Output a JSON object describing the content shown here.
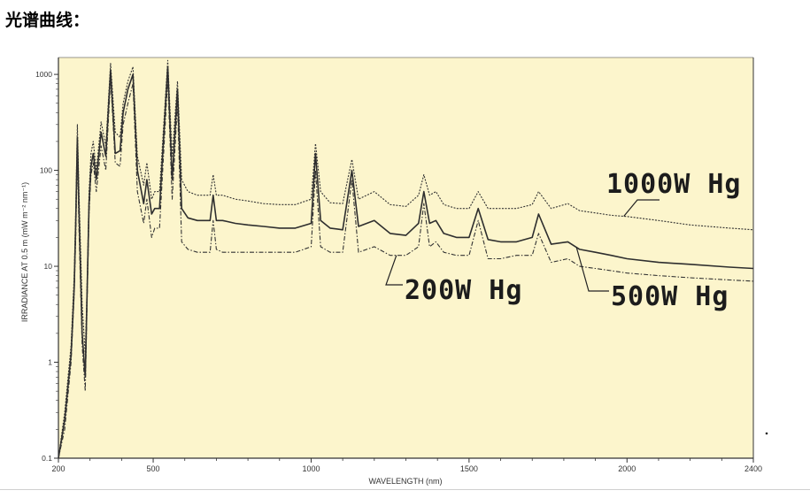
{
  "heading": "光谱曲线：",
  "chart_data": {
    "type": "line",
    "title": "",
    "xlabel": "WAVELENGTH (nm)",
    "ylabel": "IRRADIANCE AT 0.5 m (mW m⁻² nm⁻¹)",
    "xlim": [
      200,
      2400
    ],
    "ylim": [
      0.1,
      1500
    ],
    "yscale": "log",
    "xticks": [
      200,
      500,
      1000,
      1500,
      2000,
      2400
    ],
    "ytick_labels": [
      "1000",
      "100",
      "10",
      "1",
      "0.1"
    ],
    "ytick_values": [
      1000,
      100,
      10,
      1,
      0.1
    ],
    "grid": false,
    "background": "#fcf5cc",
    "series": [
      {
        "name": "1000W Hg",
        "style": "dotted",
        "x": [
          200,
          220,
          240,
          250,
          255,
          260,
          265,
          275,
          285,
          290,
          297,
          303,
          310,
          320,
          335,
          350,
          365,
          380,
          395,
          405,
          420,
          436,
          450,
          470,
          480,
          495,
          505,
          520,
          546,
          560,
          577,
          590,
          610,
          640,
          680,
          690,
          700,
          720,
          760,
          800,
          850,
          900,
          950,
          1000,
          1014,
          1030,
          1060,
          1100,
          1129,
          1150,
          1200,
          1250,
          1300,
          1340,
          1357,
          1375,
          1395,
          1420,
          1460,
          1500,
          1529,
          1560,
          1600,
          1650,
          1700,
          1720,
          1760,
          1813,
          1850,
          1900,
          1950,
          2000,
          2100,
          2200,
          2325,
          2400
        ],
        "y": [
          0.1,
          0.3,
          1.5,
          8,
          40,
          300,
          60,
          4,
          1.2,
          5,
          60,
          150,
          200,
          100,
          320,
          180,
          1300,
          250,
          220,
          500,
          850,
          1200,
          140,
          70,
          120,
          50,
          60,
          60,
          1400,
          140,
          850,
          80,
          60,
          55,
          55,
          90,
          55,
          55,
          50,
          48,
          45,
          44,
          44,
          50,
          190,
          60,
          46,
          45,
          130,
          50,
          60,
          44,
          42,
          55,
          90,
          55,
          60,
          44,
          40,
          40,
          60,
          40,
          40,
          40,
          44,
          60,
          40,
          45,
          38,
          36,
          34,
          33,
          30,
          27,
          25,
          24
        ]
      },
      {
        "name": "500W Hg",
        "style": "solid",
        "x": [
          200,
          220,
          240,
          250,
          255,
          260,
          265,
          275,
          285,
          290,
          297,
          303,
          310,
          320,
          335,
          350,
          365,
          380,
          395,
          405,
          420,
          436,
          450,
          470,
          480,
          495,
          505,
          520,
          546,
          560,
          577,
          590,
          610,
          640,
          680,
          690,
          700,
          720,
          760,
          800,
          850,
          900,
          950,
          1000,
          1014,
          1030,
          1060,
          1100,
          1129,
          1150,
          1200,
          1250,
          1300,
          1340,
          1357,
          1375,
          1395,
          1420,
          1460,
          1500,
          1529,
          1560,
          1600,
          1650,
          1700,
          1720,
          1760,
          1813,
          1850,
          1900,
          1950,
          2000,
          2100,
          2200,
          2325,
          2400
        ],
        "y": [
          0.1,
          0.25,
          1.2,
          6,
          30,
          220,
          40,
          2,
          0.7,
          4,
          45,
          110,
          150,
          80,
          250,
          140,
          1100,
          150,
          160,
          400,
          700,
          1000,
          100,
          45,
          80,
          35,
          40,
          40,
          1200,
          80,
          700,
          40,
          32,
          30,
          30,
          55,
          30,
          30,
          28,
          27,
          26,
          25,
          25,
          28,
          150,
          30,
          25,
          24,
          100,
          26,
          30,
          22,
          21,
          28,
          60,
          28,
          30,
          22,
          20,
          20,
          40,
          19,
          18,
          18,
          20,
          35,
          17,
          18,
          15,
          14,
          13,
          12,
          11,
          10.5,
          9.8,
          9.5
        ]
      },
      {
        "name": "200W Hg",
        "style": "dash-dot",
        "x": [
          200,
          220,
          240,
          250,
          255,
          260,
          265,
          275,
          285,
          290,
          297,
          303,
          310,
          320,
          335,
          350,
          365,
          380,
          395,
          405,
          420,
          436,
          450,
          470,
          480,
          495,
          505,
          520,
          546,
          560,
          577,
          590,
          610,
          640,
          680,
          690,
          700,
          720,
          760,
          800,
          850,
          900,
          950,
          1000,
          1014,
          1030,
          1060,
          1100,
          1129,
          1150,
          1200,
          1250,
          1300,
          1340,
          1357,
          1375,
          1395,
          1420,
          1460,
          1500,
          1529,
          1560,
          1600,
          1650,
          1700,
          1720,
          1760,
          1813,
          1850,
          1900,
          1950,
          2000,
          2100,
          2200,
          2325,
          2400
        ],
        "y": [
          0.1,
          0.2,
          1,
          5,
          20,
          150,
          25,
          1.5,
          0.5,
          3,
          35,
          90,
          120,
          60,
          180,
          100,
          900,
          120,
          110,
          300,
          500,
          800,
          60,
          28,
          50,
          20,
          25,
          25,
          900,
          50,
          500,
          18,
          15,
          14,
          14,
          30,
          15,
          14,
          14,
          14,
          14,
          14,
          14,
          16,
          100,
          16,
          14,
          14,
          80,
          14,
          16,
          13,
          13,
          16,
          45,
          16,
          18,
          14,
          13,
          13,
          30,
          12,
          12,
          13,
          13,
          22,
          11,
          12,
          10,
          9.5,
          9,
          8.5,
          8,
          7.6,
          7.2,
          7
        ]
      }
    ],
    "annotations": [
      {
        "text": "1000W Hg",
        "series": "1000W Hg"
      },
      {
        "text": "200W Hg",
        "series": "200W Hg"
      },
      {
        "text": "500W Hg",
        "series": "500W Hg"
      }
    ]
  }
}
